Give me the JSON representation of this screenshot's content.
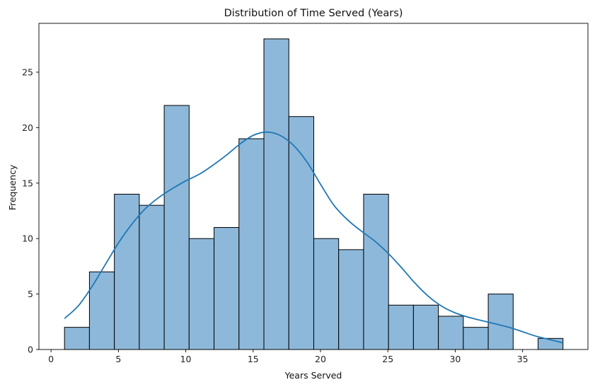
{
  "chart_data": {
    "type": "bar",
    "title": "Distribution of Time Served (Years)",
    "xlabel": "Years Served",
    "ylabel": "Frequency",
    "xlim": [
      -0.9,
      39.85
    ],
    "ylim": [
      0,
      29.4
    ],
    "x_ticks": [
      0,
      5,
      10,
      15,
      20,
      25,
      30,
      35
    ],
    "y_ticks": [
      0,
      5,
      10,
      15,
      20,
      25
    ],
    "bins": {
      "edges": [
        1,
        2.85,
        4.7,
        6.55,
        8.4,
        10.25,
        12.1,
        13.95,
        15.8,
        17.65,
        19.5,
        21.35,
        23.2,
        25.05,
        26.9,
        28.75,
        30.6,
        32.45,
        34.3,
        36.15,
        38
      ],
      "counts": [
        2,
        7,
        14,
        13,
        22,
        10,
        11,
        19,
        28,
        21,
        10,
        9,
        14,
        4,
        4,
        3,
        2,
        5,
        0,
        1
      ]
    },
    "kde": {
      "x": [
        1,
        2,
        3,
        4,
        5,
        6,
        7,
        8,
        9,
        10,
        11,
        12,
        13,
        14,
        15,
        16,
        17,
        18,
        19,
        20,
        21,
        22,
        23,
        24,
        25,
        26,
        27,
        28,
        29,
        30,
        31,
        32,
        33,
        34,
        35,
        36,
        37,
        38
      ],
      "y": [
        2.8,
        3.9,
        5.6,
        7.6,
        9.6,
        11.3,
        12.7,
        13.7,
        14.5,
        15.2,
        15.8,
        16.6,
        17.5,
        18.5,
        19.3,
        19.6,
        19.3,
        18.4,
        16.9,
        14.9,
        13.0,
        11.7,
        10.7,
        9.8,
        8.7,
        7.4,
        6.0,
        4.8,
        3.9,
        3.3,
        2.9,
        2.6,
        2.3,
        2.0,
        1.6,
        1.2,
        0.9,
        0.6
      ]
    },
    "bar_fill": "#8db8da",
    "bar_edge": "#000000",
    "kde_color": "#1f77b4",
    "grid": false,
    "legend": "none"
  }
}
